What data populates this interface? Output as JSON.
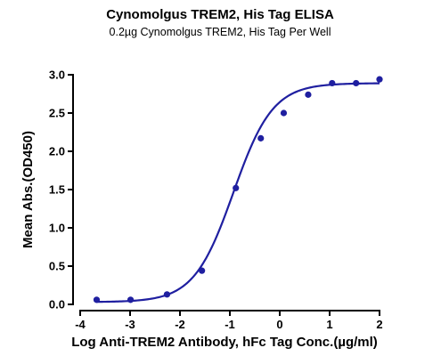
{
  "chart_data": {
    "type": "scatter",
    "title": "Cynomolgus TREM2, His Tag ELISA",
    "subtitle": "0.2µg Cynomolgus TREM2, His Tag Per Well",
    "xlabel": "Log Anti-TREM2 Antibody, hFc Tag Conc.(µg/ml)",
    "ylabel": "Mean Abs.(OD450)",
    "xlim": [
      -4,
      2
    ],
    "ylim": [
      0,
      3.0
    ],
    "xticks": [
      "-4",
      "-3",
      "-2",
      "-1",
      "0",
      "1",
      "2"
    ],
    "yticks": [
      "0.0",
      "0.5",
      "1.0",
      "1.5",
      "2.0",
      "2.5",
      "3.0"
    ],
    "grid": false,
    "series": [
      {
        "points": [
          {
            "x": -3.67,
            "y": 0.06
          },
          {
            "x": -2.99,
            "y": 0.06
          },
          {
            "x": -2.26,
            "y": 0.13
          },
          {
            "x": -1.56,
            "y": 0.44
          },
          {
            "x": -0.88,
            "y": 1.52
          },
          {
            "x": -0.38,
            "y": 2.17
          },
          {
            "x": 0.08,
            "y": 2.5
          },
          {
            "x": 0.57,
            "y": 2.74
          },
          {
            "x": 1.05,
            "y": 2.89
          },
          {
            "x": 1.53,
            "y": 2.89
          },
          {
            "x": 2.0,
            "y": 2.94
          }
        ],
        "fit": {
          "model": "4PL",
          "bottom": 0.03,
          "top": 2.89,
          "logEC50": -0.93,
          "hill": 1.1
        }
      }
    ],
    "colors": {
      "series": "#1f1fa0",
      "axis": "#000000",
      "text": "#000000"
    }
  }
}
